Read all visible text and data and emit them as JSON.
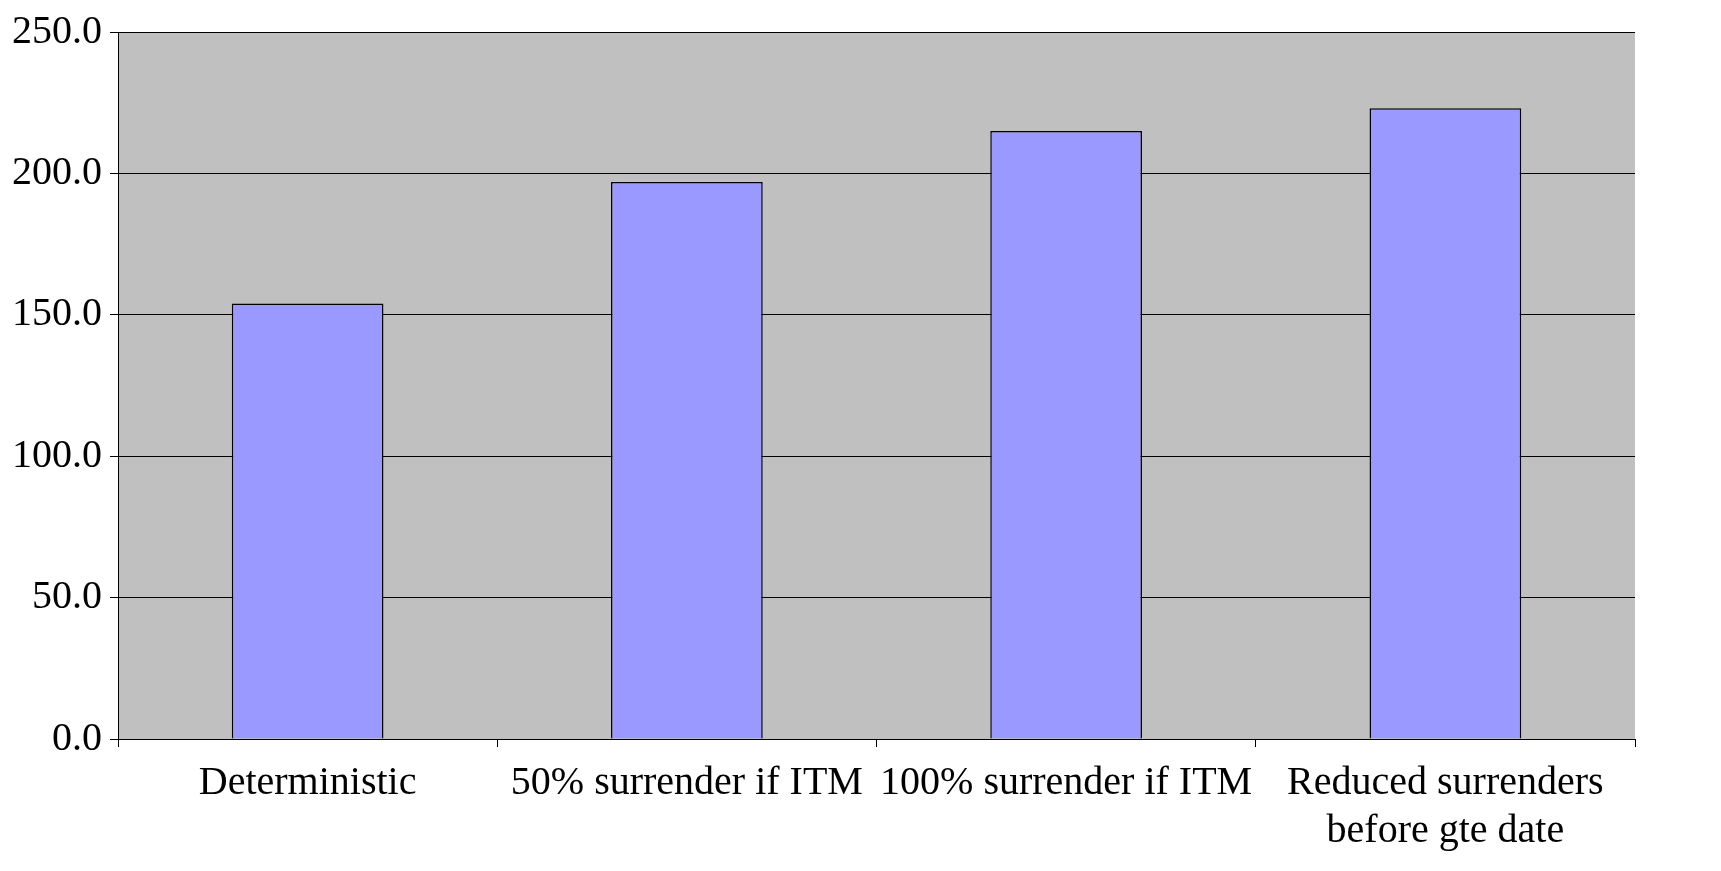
{
  "chart_data": {
    "type": "bar",
    "categories": [
      "Deterministic",
      "50% surrender if ITM",
      "100% surrender if ITM",
      "Reduced surrenders before gte date"
    ],
    "values": [
      154,
      197,
      215,
      223
    ],
    "color": "#9999ff",
    "ylim": [
      0,
      250
    ],
    "yticks": [
      {
        "value": 0,
        "label": "0.0"
      },
      {
        "value": 50,
        "label": "50.0"
      },
      {
        "value": 100,
        "label": "100.0"
      },
      {
        "value": 150,
        "label": "150.0"
      },
      {
        "value": 200,
        "label": "200.0"
      },
      {
        "value": 250,
        "label": "250.0"
      }
    ],
    "grid": "y"
  }
}
